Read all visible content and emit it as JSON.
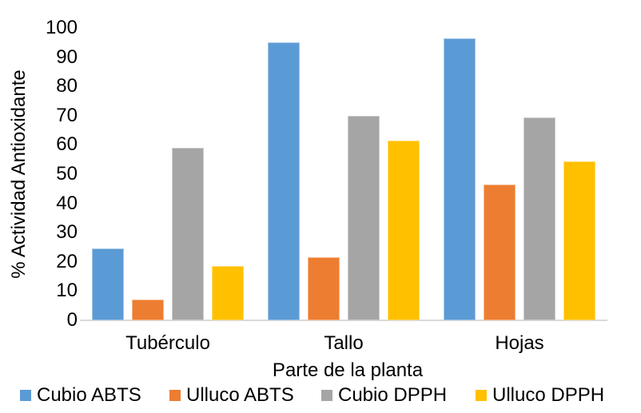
{
  "chart_data": {
    "type": "bar",
    "title": "",
    "xlabel": "Parte de la planta",
    "ylabel": "% Actividad Antioxidante",
    "categories": [
      "Tubérculo",
      "Tallo",
      "Hojas"
    ],
    "series": [
      {
        "name": "Cubio ABTS",
        "color": "#5B9BD5",
        "values": [
          24.5,
          95.0,
          96.5
        ]
      },
      {
        "name": "Ulluco ABTS",
        "color": "#ED7D31",
        "values": [
          7.0,
          21.5,
          46.5
        ]
      },
      {
        "name": "Cubio DPPH",
        "color": "#A5A5A5",
        "values": [
          59.0,
          70.0,
          69.5
        ]
      },
      {
        "name": "Ulluco DPPH",
        "color": "#FFC000",
        "values": [
          18.5,
          61.5,
          54.5
        ]
      }
    ],
    "ylim": [
      0,
      100
    ],
    "yticks": [
      0,
      10,
      20,
      30,
      40,
      50,
      60,
      70,
      80,
      90,
      100
    ],
    "grid": false,
    "legend_position": "bottom",
    "axis_line_color": "#D9D9D9",
    "text_color": "#000000",
    "background_color": "#FFFFFF"
  }
}
